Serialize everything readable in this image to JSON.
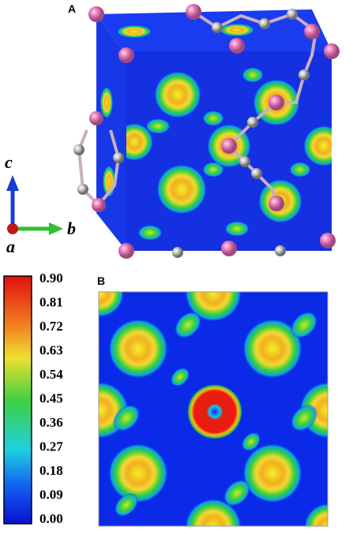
{
  "panel_a": {
    "label": "A"
  },
  "panel_b": {
    "label": "B"
  },
  "axes": {
    "c": "c",
    "b": "b",
    "a": "a"
  },
  "colorbar": {
    "ticks": [
      "0.90",
      "0.81",
      "0.72",
      "0.63",
      "0.54",
      "0.45",
      "0.36",
      "0.27",
      "0.18",
      "0.09",
      "0.00"
    ]
  }
}
